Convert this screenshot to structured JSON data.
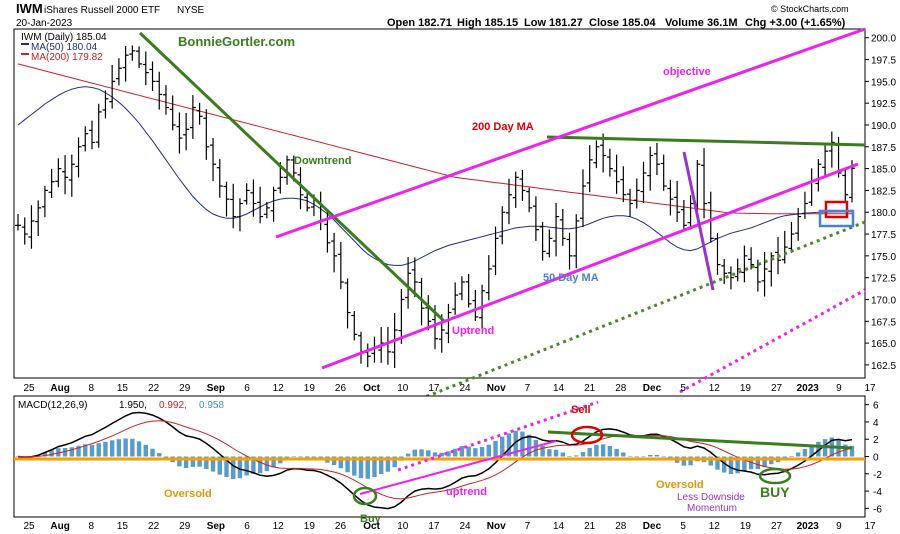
{
  "header": {
    "ticker": "IWM",
    "name": "iShares Russell 2000 ETF",
    "exchange": "NYSE",
    "date": "20-Jan-2023",
    "open": "Open 182.71",
    "high": "High 185.15",
    "low": "Low 181.27",
    "close": "Close 185.04",
    "volume": "Volume 36.1M",
    "change": "Chg +3.00 (+1.65%)",
    "credit": "© StockCharts.com",
    "watermark": "BonnieGortler.com"
  },
  "legend": {
    "price": "IWM (Daily) 185.04",
    "ma50": "MA(50) 180.04",
    "ma200": "MA(200) 179.82"
  },
  "macd_legend": {
    "label": "MACD(12,26,9)",
    "v1": "1.950,",
    "v2": "0.992,",
    "v3": "0.958"
  },
  "annotations": {
    "downtrend": "Downtrend",
    "uptrend": "Uptrend",
    "ma200_label": "200 Day MA",
    "ma50_label": "50 Day MA",
    "objective": "objective",
    "sell": "Sell",
    "buy_left": "Buy",
    "buy_right": "BUY",
    "oversold_left": "Oversold",
    "oversold_right": "Oversold",
    "macd_uptrend": "uptrend",
    "less_downside": "Less Downside",
    "momentum": "Momentum"
  },
  "colors": {
    "price": "#000000",
    "ma50": "#1f2f8c",
    "ma200": "#cc2222",
    "trend_green": "#3a7d1e",
    "channel_magenta": "#ee22ee",
    "dotted_green": "#4a8a2a",
    "hist_blue": "#5b9bc8",
    "zero_orange": "#f5a000",
    "sell_red": "#e00000",
    "buy_green": "#3a7d1e",
    "label_orange": "#e69500",
    "label_purple": "#9933cc",
    "label_blue": "#4a7fd4",
    "label_red": "#dd0000",
    "box_red": "#e00000",
    "box_blue": "#4a7fd4"
  },
  "chart_data": [
    {
      "type": "ohlc",
      "series_name": "IWM (Daily)",
      "ylim": [
        161,
        201
      ],
      "y_ticks": [
        "200.0",
        "197.5",
        "195.0",
        "192.5",
        "190.0",
        "187.5",
        "185.0",
        "182.5",
        "180.0",
        "177.5",
        "175.0",
        "172.5",
        "170.0",
        "167.5",
        "165.0",
        "162.5"
      ],
      "x_ticks": [
        "25",
        "Aug",
        "8",
        "15",
        "22",
        "29",
        "Sep",
        "6",
        "12",
        "19",
        "26",
        "Oct",
        "10",
        "17",
        "24",
        "Nov",
        "7",
        "14",
        "21",
        "28",
        "Dec",
        "5",
        "12",
        "19",
        "27",
        "2023",
        "9",
        "17"
      ],
      "bar_count": 125,
      "closes": [
        178.5,
        177.5,
        179.0,
        180.5,
        182.5,
        183.5,
        185.0,
        184.0,
        185.5,
        187.5,
        189.0,
        188.0,
        191.5,
        193.0,
        195.0,
        196.5,
        198.0,
        198.5,
        197.0,
        196.0,
        195.0,
        193.5,
        192.0,
        190.0,
        188.5,
        189.5,
        192.0,
        191.0,
        187.5,
        185.5,
        183.0,
        181.5,
        179.5,
        181.0,
        182.5,
        181.0,
        179.5,
        180.5,
        182.5,
        184.0,
        186.0,
        184.5,
        182.0,
        180.5,
        181.5,
        179.0,
        176.5,
        175.0,
        172.0,
        168.5,
        166.0,
        164.0,
        163.5,
        164.5,
        165.0,
        164.0,
        166.5,
        170.0,
        173.0,
        172.0,
        169.0,
        167.5,
        165.5,
        166.5,
        168.5,
        170.5,
        172.0,
        169.5,
        168.0,
        171.0,
        173.5,
        177.0,
        180.0,
        182.0,
        184.0,
        182.5,
        180.5,
        178.0,
        175.5,
        177.0,
        179.5,
        177.0,
        175.0,
        179.0,
        183.0,
        186.0,
        187.5,
        186.5,
        185.0,
        183.5,
        182.0,
        181.0,
        182.5,
        184.5,
        186.5,
        185.5,
        183.0,
        181.5,
        180.0,
        178.5,
        181.0,
        185.5,
        181.0,
        177.0,
        174.0,
        173.0,
        172.5,
        173.5,
        175.0,
        174.0,
        172.0,
        173.5,
        175.0,
        174.5,
        176.0,
        177.5,
        179.5,
        181.0,
        183.5,
        185.5,
        187.0,
        188.0,
        184.5,
        182.0,
        185.04
      ],
      "ma50": [
        190.0,
        190.6,
        191.2,
        191.8,
        192.4,
        192.9,
        193.4,
        193.8,
        194.1,
        194.3,
        194.4,
        194.3,
        194.1,
        193.7,
        193.2,
        192.6,
        191.9,
        191.1,
        190.2,
        189.2,
        188.2,
        187.1,
        186.0,
        184.9,
        183.8,
        182.8,
        181.8,
        181.0,
        180.3,
        179.8,
        179.5,
        179.3,
        179.3,
        179.5,
        179.8,
        180.2,
        180.6,
        181.0,
        181.3,
        181.5,
        181.6,
        181.6,
        181.5,
        181.3,
        180.9,
        180.4,
        179.8,
        179.1,
        178.3,
        177.5,
        176.7,
        175.9,
        175.2,
        174.7,
        174.3,
        174.0,
        173.9,
        173.9,
        174.1,
        174.4,
        174.8,
        175.2,
        175.6,
        175.9,
        176.2,
        176.4,
        176.6,
        176.8,
        177.0,
        177.2,
        177.4,
        177.6,
        177.8,
        178.0,
        178.2,
        178.3,
        178.4,
        178.4,
        178.4,
        178.3,
        178.2,
        178.1,
        178.1,
        178.2,
        178.4,
        178.7,
        179.0,
        179.3,
        179.5,
        179.6,
        179.6,
        179.5,
        179.2,
        178.8,
        178.3,
        177.7,
        177.1,
        176.5,
        176.0,
        175.7,
        175.6,
        175.8,
        176.2,
        176.6,
        177.0,
        177.3,
        177.6,
        177.8,
        178.0,
        178.2,
        178.5,
        178.8,
        179.1,
        179.4,
        179.6,
        179.7,
        179.8,
        179.9,
        179.95,
        180.0,
        180.02,
        180.03,
        180.04,
        180.04,
        180.04
      ],
      "ma200": [
        197.0,
        196.8,
        196.6,
        196.4,
        196.2,
        196.0,
        195.8,
        195.6,
        195.4,
        195.2,
        195.0,
        194.8,
        194.6,
        194.4,
        194.2,
        194.0,
        193.8,
        193.6,
        193.4,
        193.2,
        193.0,
        192.8,
        192.6,
        192.4,
        192.2,
        192.0,
        191.8,
        191.6,
        191.4,
        191.2,
        191.0,
        190.8,
        190.6,
        190.4,
        190.2,
        190.0,
        189.8,
        189.6,
        189.4,
        189.2,
        189.0,
        188.8,
        188.6,
        188.4,
        188.2,
        188.0,
        187.8,
        187.6,
        187.4,
        187.2,
        187.0,
        186.8,
        186.6,
        186.4,
        186.2,
        186.0,
        185.8,
        185.6,
        185.4,
        185.2,
        185.0,
        184.8,
        184.6,
        184.4,
        184.2,
        184.0,
        183.9,
        183.8,
        183.7,
        183.6,
        183.5,
        183.4,
        183.3,
        183.2,
        183.1,
        183.0,
        182.9,
        182.8,
        182.7,
        182.6,
        182.5,
        182.4,
        182.3,
        182.2,
        182.1,
        182.0,
        181.9,
        181.8,
        181.7,
        181.6,
        181.5,
        181.4,
        181.3,
        181.2,
        181.1,
        181.0,
        180.9,
        180.8,
        180.7,
        180.6,
        180.5,
        180.4,
        180.3,
        180.2,
        180.1,
        180.0,
        179.95,
        179.9,
        179.88,
        179.86,
        179.85,
        179.84,
        179.83,
        179.83,
        179.82,
        179.82,
        179.82,
        179.82,
        179.82,
        179.82,
        179.82,
        179.82,
        179.82,
        179.82,
        179.82
      ]
    },
    {
      "type": "macd",
      "series_name": "MACD(12,26,9)",
      "ylim": [
        -7,
        7
      ],
      "y_ticks": [
        "6",
        "4",
        "2",
        "0",
        "-2",
        "-4",
        "-6"
      ],
      "x_ticks": [
        "25",
        "Aug",
        "8",
        "15",
        "22",
        "29",
        "Sep",
        "6",
        "12",
        "19",
        "26",
        "Oct",
        "10",
        "17",
        "24",
        "Nov",
        "7",
        "14",
        "21",
        "28",
        "Dec",
        "5",
        "12",
        "19",
        "27",
        "2023",
        "9",
        "17"
      ],
      "macd_last": 1.95,
      "signal_last": 0.992,
      "histogram_last": 0.958
    }
  ]
}
